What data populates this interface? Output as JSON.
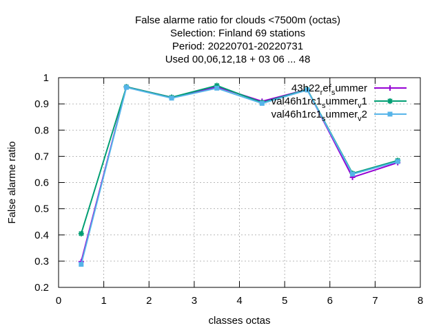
{
  "chart_data": {
    "type": "line",
    "title": [
      "False alarme ratio  for clouds <7500m (octas)",
      "Selection: Finland     69 stations",
      "Period: 20220701-20220731",
      "Used  00,06,12,18  + 03 06 ... 48"
    ],
    "xlabel": "classes octas",
    "ylabel": "False alarme ratio",
    "xlim": [
      0,
      8
    ],
    "ylim": [
      0.2,
      1
    ],
    "xticks": [
      0,
      1,
      2,
      3,
      4,
      5,
      6,
      7,
      8
    ],
    "yticks": [
      0.2,
      0.3,
      0.4,
      0.5,
      0.6,
      0.7,
      0.8,
      0.9,
      1
    ],
    "ytick_labels": [
      "0.2",
      "0.3",
      "0.4",
      "0.5",
      "0.6",
      "0.7",
      "0.8",
      "0.9",
      "1"
    ],
    "grid": true,
    "legend_position": "top-right",
    "x": [
      0.5,
      1.5,
      2.5,
      3.5,
      4.5,
      5.5,
      6.5,
      7.5
    ],
    "series": [
      {
        "name": "43h22_ref_summer",
        "legend_parts": [
          {
            "t": "43h22"
          },
          {
            "t": "r",
            "sub": true
          },
          {
            "t": "ef"
          },
          {
            "t": "s",
            "sub": true
          },
          {
            "t": "ummer"
          }
        ],
        "color": "#9400d3",
        "marker": "plus",
        "values": [
          0.298,
          0.965,
          0.925,
          0.965,
          0.91,
          0.955,
          0.62,
          0.676
        ]
      },
      {
        "name": "val46h1rc1_summer_v1",
        "legend_parts": [
          {
            "t": "val46h1rc1"
          },
          {
            "t": "s",
            "sub": true
          },
          {
            "t": "ummer"
          },
          {
            "t": "v",
            "sub": true
          },
          {
            "t": "1"
          }
        ],
        "color": "#009e73",
        "marker": "star",
        "values": [
          0.405,
          0.965,
          0.925,
          0.97,
          0.905,
          0.955,
          0.635,
          0.684
        ]
      },
      {
        "name": "val46h1rc1_summer_v2",
        "legend_parts": [
          {
            "t": "val46h1rc1"
          },
          {
            "t": "s",
            "sub": true
          },
          {
            "t": "ummer"
          },
          {
            "t": "v",
            "sub": true
          },
          {
            "t": "2"
          }
        ],
        "color": "#56b4e9",
        "marker": "box",
        "values": [
          0.288,
          0.963,
          0.922,
          0.96,
          0.902,
          0.953,
          0.632,
          0.68
        ]
      }
    ]
  }
}
